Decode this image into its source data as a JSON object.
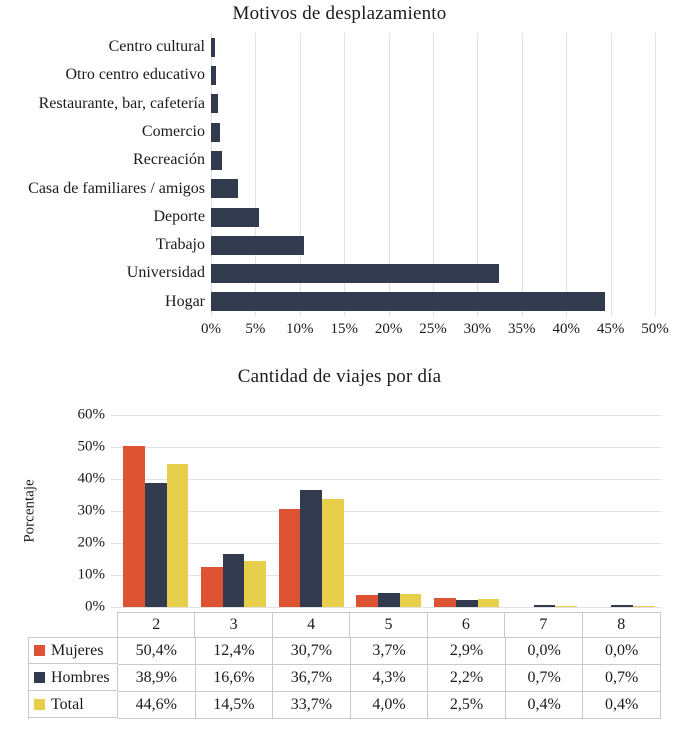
{
  "colors": {
    "bar_navy": "#323A4E",
    "mujeres": "#DC5233",
    "hombres": "#323A4E",
    "total": "#E7CF4C",
    "gridline": "#E1E1E1",
    "table_border": "#C9C9C9"
  },
  "chart_data": [
    {
      "type": "bar",
      "orientation": "horizontal",
      "title": "Motivos de desplazamiento",
      "categories": [
        "Centro cultural",
        "Otro centro educativo",
        "Restaurante, bar, cafetería",
        "Comercio",
        "Recreación",
        "Casa de familiares / amigos",
        "Deporte",
        "Trabajo",
        "Universidad",
        "Hogar"
      ],
      "values": [
        0.4,
        0.6,
        0.8,
        1.0,
        1.2,
        3.0,
        5.4,
        10.5,
        32.4,
        44.4
      ],
      "bar_color": "#323A4E",
      "xlim": [
        0,
        50
      ],
      "x_ticks": [
        "0%",
        "5%",
        "10%",
        "15%",
        "20%",
        "25%",
        "30%",
        "35%",
        "40%",
        "45%",
        "50%"
      ],
      "grid": "vertical",
      "legend": "none"
    },
    {
      "type": "bar",
      "orientation": "vertical",
      "title": "Cantidad de viajes por día",
      "ylabel": "Porcentaje",
      "categories": [
        "2",
        "3",
        "4",
        "5",
        "6",
        "7",
        "8"
      ],
      "series": [
        {
          "name": "Mujeres",
          "color": "#DC5233",
          "values": [
            50.4,
            12.4,
            30.7,
            3.7,
            2.9,
            0.0,
            0.0
          ],
          "labels": [
            "50,4%",
            "12,4%",
            "30,7%",
            "3,7%",
            "2,9%",
            "0,0%",
            "0,0%"
          ]
        },
        {
          "name": "Hombres",
          "color": "#323A4E",
          "values": [
            38.9,
            16.6,
            36.7,
            4.3,
            2.2,
            0.7,
            0.7
          ],
          "labels": [
            "38,9%",
            "16,6%",
            "36,7%",
            "4,3%",
            "2,2%",
            "0,7%",
            "0,7%"
          ]
        },
        {
          "name": "Total",
          "color": "#E7CF4C",
          "values": [
            44.6,
            14.5,
            33.7,
            4.0,
            2.5,
            0.4,
            0.4
          ],
          "labels": [
            "44,6%",
            "14,5%",
            "33,7%",
            "4,0%",
            "2,5%",
            "0,4%",
            "0,4%"
          ]
        }
      ],
      "ylim": [
        0,
        60
      ],
      "y_ticks": [
        "0%",
        "10%",
        "20%",
        "30%",
        "40%",
        "50%",
        "60%"
      ],
      "grid": "horizontal",
      "legend_position": "table-left",
      "data_table": true
    }
  ]
}
